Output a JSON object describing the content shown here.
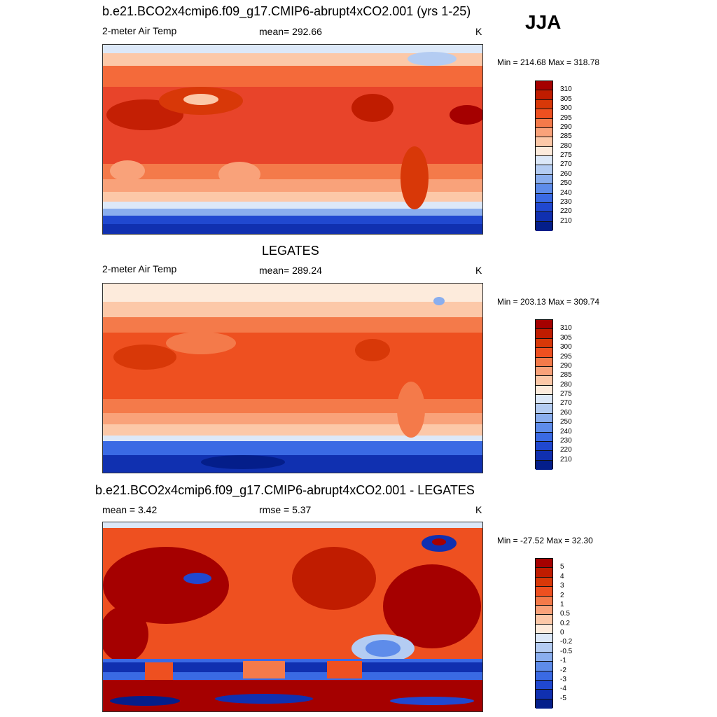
{
  "season": "JJA",
  "panels": [
    {
      "title": "b.e21.BCO2x4cmip6.f09_g17.CMIP6-abrupt4xCO2.001 (yrs 1-25)",
      "variable": "2-meter Air Temp",
      "stat1": "mean= 292.66",
      "stat2": "",
      "units": "K",
      "minmax": "Min = 214.68 Max = 318.78"
    },
    {
      "title": "LEGATES",
      "variable": "2-meter Air Temp",
      "stat1": "mean= 289.24",
      "stat2": "",
      "units": "K",
      "minmax": "Min = 203.13 Max = 309.74"
    },
    {
      "title": "b.e21.BCO2x4cmip6.f09_g17.CMIP6-abrupt4xCO2.001 - LEGATES",
      "variable": "",
      "stat1": "mean =   3.42",
      "stat2": "rmse =   5.37",
      "units": "K",
      "minmax": "Min = -27.52 Max =  32.30"
    }
  ],
  "colors": {
    "abs": [
      "#a50000",
      "#c01c00",
      "#d83808",
      "#ee5020",
      "#f47a4a",
      "#f9a27a",
      "#fcc8a8",
      "#fdebdc",
      "#dce8f8",
      "#b4ccf2",
      "#8aaeee",
      "#5e8cea",
      "#3a6ae4",
      "#2048d0",
      "#1030b0",
      "#041e8a"
    ],
    "diff": [
      "#a50000",
      "#c01c00",
      "#d83808",
      "#ee5020",
      "#f47a4a",
      "#f9a27a",
      "#fcc8a8",
      "#fdebdc",
      "#dce8f8",
      "#b4ccf2",
      "#8aaeee",
      "#5e8cea",
      "#3a6ae4",
      "#2048d0",
      "#1030b0",
      "#041e8a"
    ]
  },
  "chart_data": [
    {
      "type": "heatmap",
      "title": "b.e21.BCO2x4cmip6.f09_g17.CMIP6-abrupt4xCO2.001 (yrs 1-25)",
      "variable": "2-meter Air Temp",
      "units": "K",
      "mean": 292.66,
      "min": 214.68,
      "max": 318.78,
      "colorbar_levels": [
        "310",
        "305",
        "300",
        "295",
        "290",
        "285",
        "280",
        "275",
        "270",
        "260",
        "250",
        "240",
        "230",
        "220",
        "210"
      ]
    },
    {
      "type": "heatmap",
      "title": "LEGATES",
      "variable": "2-meter Air Temp",
      "units": "K",
      "mean": 289.24,
      "min": 203.13,
      "max": 309.74,
      "colorbar_levels": [
        "310",
        "305",
        "300",
        "295",
        "290",
        "285",
        "280",
        "275",
        "270",
        "260",
        "250",
        "240",
        "230",
        "220",
        "210"
      ]
    },
    {
      "type": "heatmap",
      "title": "b.e21.BCO2x4cmip6.f09_g17.CMIP6-abrupt4xCO2.001 - LEGATES",
      "units": "K",
      "mean": 3.42,
      "rmse": 5.37,
      "min": -27.52,
      "max": 32.3,
      "colorbar_levels": [
        "5",
        "4",
        "3",
        "2",
        "1",
        "0.5",
        "0.2",
        "0",
        "-0.2",
        "-0.5",
        "-1",
        "-2",
        "-3",
        "-4",
        "-5"
      ]
    }
  ]
}
